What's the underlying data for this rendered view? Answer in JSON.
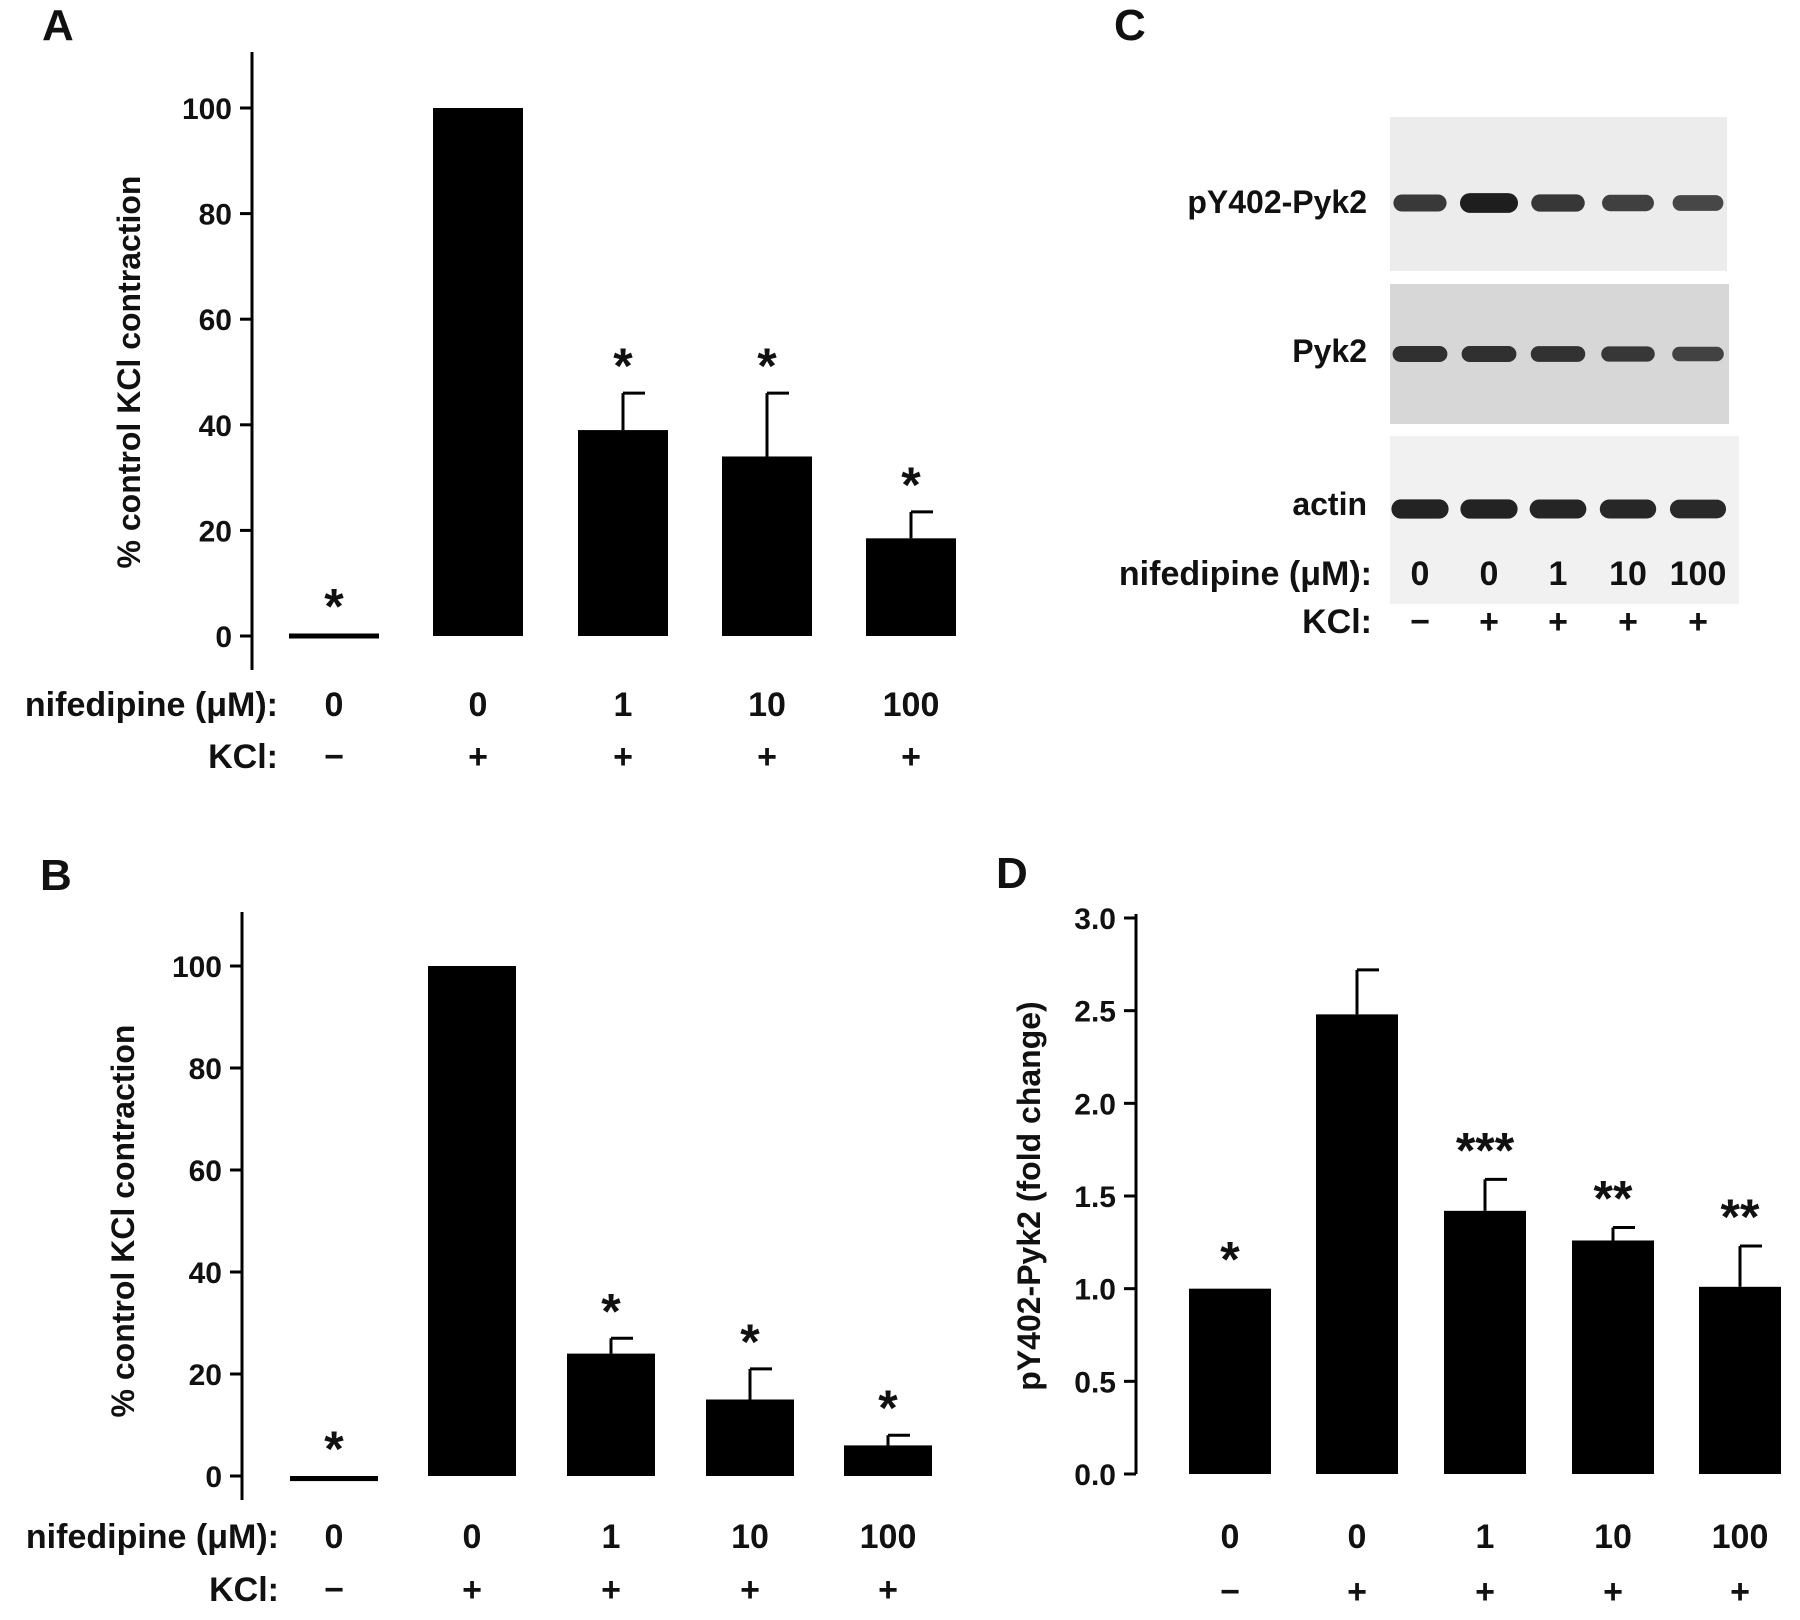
{
  "colors": {
    "bar": "#000000",
    "axis": "#000000",
    "text": "#111111"
  },
  "row_labels": {
    "nifedipine": "nifedipine (μM):",
    "kcl": "KCl:"
  },
  "chart_data": [
    {
      "panel": "A",
      "type": "bar",
      "ylabel": "% control KCl contraction",
      "ylim": [
        0,
        110
      ],
      "yticks": [
        "0",
        "20",
        "40",
        "60",
        "80",
        "100"
      ],
      "nifedipine": [
        "0",
        "0",
        "1",
        "10",
        "100"
      ],
      "kcl": [
        "−",
        "+",
        "+",
        "+",
        "+"
      ],
      "values": [
        0,
        100,
        39,
        34,
        18.5
      ],
      "errors": [
        0,
        0,
        7,
        12,
        5
      ],
      "significance": [
        "*",
        "",
        "*",
        "*",
        "*"
      ]
    },
    {
      "panel": "B",
      "type": "bar",
      "ylabel": "% control KCl contraction",
      "ylim": [
        -5,
        110
      ],
      "yticks": [
        "0",
        "20",
        "40",
        "60",
        "80",
        "100"
      ],
      "nifedipine": [
        "0",
        "0",
        "1",
        "10",
        "100"
      ],
      "kcl": [
        "−",
        "+",
        "+",
        "+",
        "+"
      ],
      "values": [
        -1,
        100,
        24,
        15,
        6
      ],
      "errors": [
        0,
        0,
        3,
        6,
        2
      ],
      "significance": [
        "*",
        "",
        "*",
        "*",
        "*"
      ]
    },
    {
      "panel": "D",
      "type": "bar",
      "ylabel": "pY402-Pyk2 (fold change)",
      "ylim": [
        0,
        3
      ],
      "yticks": [
        "0.0",
        "0.5",
        "1.0",
        "1.5",
        "2.0",
        "2.5",
        "3.0"
      ],
      "nifedipine": [
        "0",
        "0",
        "1",
        "10",
        "100"
      ],
      "kcl": [
        "−",
        "+",
        "+",
        "+",
        "+"
      ],
      "values": [
        1.0,
        2.48,
        1.42,
        1.26,
        1.01
      ],
      "errors": [
        0,
        0.24,
        0.17,
        0.07,
        0.22
      ],
      "significance": [
        "*",
        "",
        "***",
        "**",
        "**"
      ]
    }
  ],
  "blot": {
    "panel": "C",
    "rows": [
      {
        "label": "pY402-Pyk2",
        "band_intensity": [
          0.7,
          1.0,
          0.72,
          0.62,
          0.55
        ]
      },
      {
        "label": "Pyk2",
        "band_intensity": [
          0.8,
          0.8,
          0.78,
          0.72,
          0.6
        ]
      },
      {
        "label": "actin",
        "band_intensity": [
          0.95,
          0.95,
          0.92,
          0.9,
          0.88
        ]
      }
    ],
    "nifedipine": [
      "0",
      "0",
      "1",
      "10",
      "100"
    ],
    "kcl": [
      "−",
      "+",
      "+",
      "+",
      "+"
    ]
  }
}
